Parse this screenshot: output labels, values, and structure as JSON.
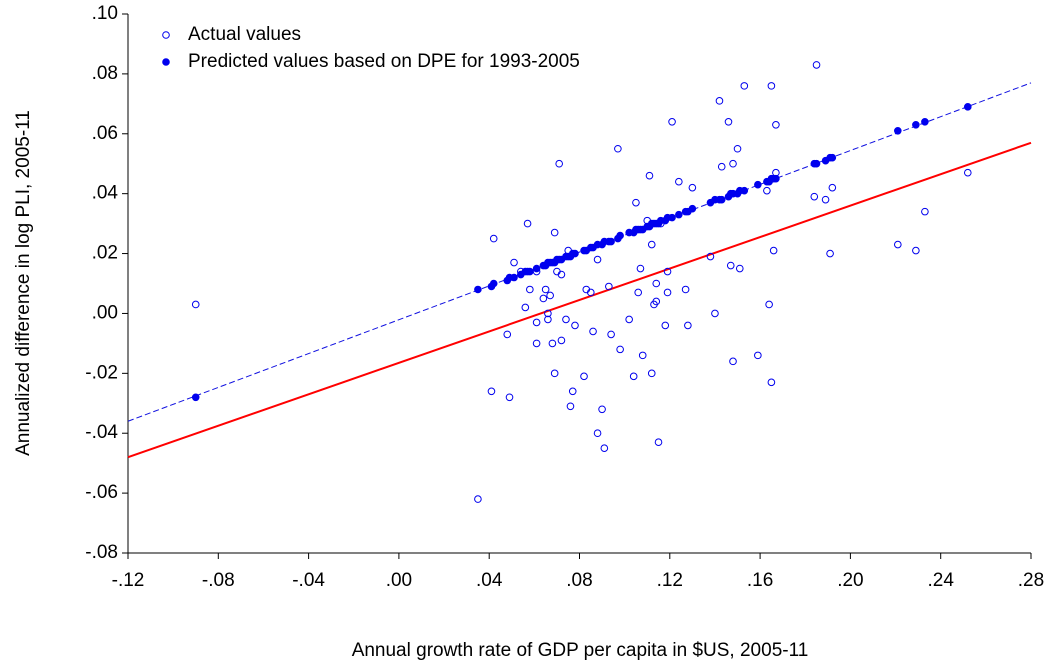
{
  "chart_data": {
    "type": "scatter",
    "xlabel": "Annual growth rate of GDP per capita in $US, 2005-11",
    "ylabel": "Annualized difference in log PLI, 2005-11",
    "xlim": [
      -0.12,
      0.28
    ],
    "ylim": [
      -0.08,
      0.1
    ],
    "xticks": [
      {
        "value": -0.12,
        "label": "-.12"
      },
      {
        "value": -0.08,
        "label": "-.08"
      },
      {
        "value": -0.04,
        "label": "-.04"
      },
      {
        "value": 0.0,
        "label": ".00"
      },
      {
        "value": 0.04,
        "label": ".04"
      },
      {
        "value": 0.08,
        "label": ".08"
      },
      {
        "value": 0.12,
        "label": ".12"
      },
      {
        "value": 0.16,
        "label": ".16"
      },
      {
        "value": 0.2,
        "label": ".20"
      },
      {
        "value": 0.24,
        "label": ".24"
      },
      {
        "value": 0.28,
        "label": ".28"
      }
    ],
    "yticks": [
      {
        "value": -0.08,
        "label": "-.08"
      },
      {
        "value": -0.06,
        "label": "-.06"
      },
      {
        "value": -0.04,
        "label": "-.04"
      },
      {
        "value": -0.02,
        "label": "-.02"
      },
      {
        "value": 0.0,
        "label": ".00"
      },
      {
        "value": 0.02,
        "label": ".02"
      },
      {
        "value": 0.04,
        "label": ".04"
      },
      {
        "value": 0.06,
        "label": ".06"
      },
      {
        "value": 0.08,
        "label": ".08"
      },
      {
        "value": 0.1,
        "label": ".10"
      }
    ],
    "grid": false,
    "legend": "upper left",
    "lines": [
      {
        "style": "dashed",
        "color": "#1010e0",
        "x": [
          -0.12,
          0.28
        ],
        "y": [
          -0.036,
          0.077
        ]
      },
      {
        "style": "solid",
        "color": "#ff0000",
        "x": [
          -0.12,
          0.28
        ],
        "y": [
          -0.048,
          0.057
        ]
      }
    ],
    "series": [
      {
        "name": "Actual values",
        "color": "#0000ee",
        "marker": "hollow",
        "x": [
          -0.09,
          0.035,
          0.042,
          0.041,
          0.048,
          0.049,
          0.051,
          0.054,
          0.056,
          0.057,
          0.058,
          0.061,
          0.061,
          0.061,
          0.064,
          0.065,
          0.066,
          0.066,
          0.067,
          0.068,
          0.069,
          0.069,
          0.07,
          0.071,
          0.072,
          0.072,
          0.074,
          0.075,
          0.076,
          0.077,
          0.078,
          0.082,
          0.083,
          0.085,
          0.086,
          0.088,
          0.088,
          0.09,
          0.091,
          0.093,
          0.094,
          0.097,
          0.098,
          0.102,
          0.104,
          0.105,
          0.106,
          0.107,
          0.108,
          0.11,
          0.111,
          0.112,
          0.112,
          0.113,
          0.114,
          0.114,
          0.115,
          0.116,
          0.118,
          0.119,
          0.119,
          0.121,
          0.124,
          0.127,
          0.128,
          0.13,
          0.138,
          0.14,
          0.142,
          0.143,
          0.146,
          0.147,
          0.148,
          0.148,
          0.15,
          0.151,
          0.153,
          0.159,
          0.163,
          0.164,
          0.165,
          0.165,
          0.166,
          0.167,
          0.167,
          0.184,
          0.185,
          0.189,
          0.191,
          0.192,
          0.221,
          0.229,
          0.233,
          0.252
        ],
        "values": [
          0.003,
          -0.062,
          0.025,
          -0.026,
          -0.007,
          -0.028,
          0.017,
          0.014,
          0.002,
          0.03,
          0.008,
          0.014,
          -0.003,
          -0.01,
          0.005,
          0.008,
          -0.002,
          0.0,
          0.006,
          -0.01,
          -0.02,
          0.027,
          0.014,
          0.05,
          -0.009,
          0.013,
          -0.002,
          0.021,
          -0.031,
          -0.026,
          -0.004,
          -0.021,
          0.008,
          0.007,
          -0.006,
          0.018,
          -0.04,
          -0.032,
          -0.045,
          0.009,
          -0.007,
          0.055,
          -0.012,
          -0.002,
          -0.021,
          0.037,
          0.007,
          0.015,
          -0.014,
          0.031,
          0.046,
          -0.02,
          0.023,
          0.003,
          0.01,
          0.004,
          -0.043,
          0.03,
          -0.004,
          0.014,
          0.007,
          0.064,
          0.044,
          0.008,
          -0.004,
          0.042,
          0.019,
          0.0,
          0.071,
          0.049,
          0.064,
          0.016,
          -0.016,
          0.05,
          0.055,
          0.015,
          0.076,
          -0.014,
          0.041,
          0.003,
          0.076,
          -0.023,
          0.021,
          0.063,
          0.047,
          0.039,
          0.083,
          0.038,
          0.02,
          0.042,
          0.023,
          0.021,
          0.034,
          0.047
        ]
      },
      {
        "name": "Predicted values based on DPE for 1993-2005",
        "color": "#0000ee",
        "marker": "filled",
        "x": [
          -0.09,
          0.035,
          0.042,
          0.041,
          0.048,
          0.049,
          0.051,
          0.054,
          0.056,
          0.057,
          0.058,
          0.061,
          0.064,
          0.065,
          0.066,
          0.067,
          0.068,
          0.069,
          0.07,
          0.071,
          0.072,
          0.074,
          0.075,
          0.076,
          0.077,
          0.078,
          0.082,
          0.083,
          0.085,
          0.086,
          0.088,
          0.09,
          0.091,
          0.093,
          0.094,
          0.097,
          0.098,
          0.102,
          0.104,
          0.105,
          0.106,
          0.107,
          0.108,
          0.11,
          0.111,
          0.112,
          0.113,
          0.114,
          0.115,
          0.116,
          0.118,
          0.119,
          0.121,
          0.124,
          0.127,
          0.128,
          0.13,
          0.138,
          0.14,
          0.142,
          0.143,
          0.146,
          0.147,
          0.148,
          0.15,
          0.151,
          0.153,
          0.159,
          0.163,
          0.164,
          0.165,
          0.166,
          0.167,
          0.184,
          0.185,
          0.189,
          0.191,
          0.192,
          0.221,
          0.229,
          0.233,
          0.252
        ],
        "values": [
          -0.028,
          0.008,
          0.01,
          0.009,
          0.011,
          0.012,
          0.012,
          0.013,
          0.014,
          0.014,
          0.014,
          0.015,
          0.016,
          0.016,
          0.017,
          0.017,
          0.017,
          0.017,
          0.018,
          0.018,
          0.018,
          0.019,
          0.019,
          0.019,
          0.02,
          0.02,
          0.021,
          0.021,
          0.022,
          0.022,
          0.023,
          0.023,
          0.024,
          0.024,
          0.024,
          0.025,
          0.026,
          0.027,
          0.027,
          0.028,
          0.028,
          0.028,
          0.028,
          0.029,
          0.029,
          0.03,
          0.03,
          0.03,
          0.03,
          0.031,
          0.031,
          0.032,
          0.032,
          0.033,
          0.034,
          0.034,
          0.035,
          0.037,
          0.038,
          0.038,
          0.038,
          0.039,
          0.04,
          0.04,
          0.04,
          0.041,
          0.041,
          0.043,
          0.044,
          0.044,
          0.045,
          0.045,
          0.045,
          0.05,
          0.05,
          0.051,
          0.052,
          0.052,
          0.061,
          0.063,
          0.064,
          0.069
        ]
      }
    ]
  }
}
